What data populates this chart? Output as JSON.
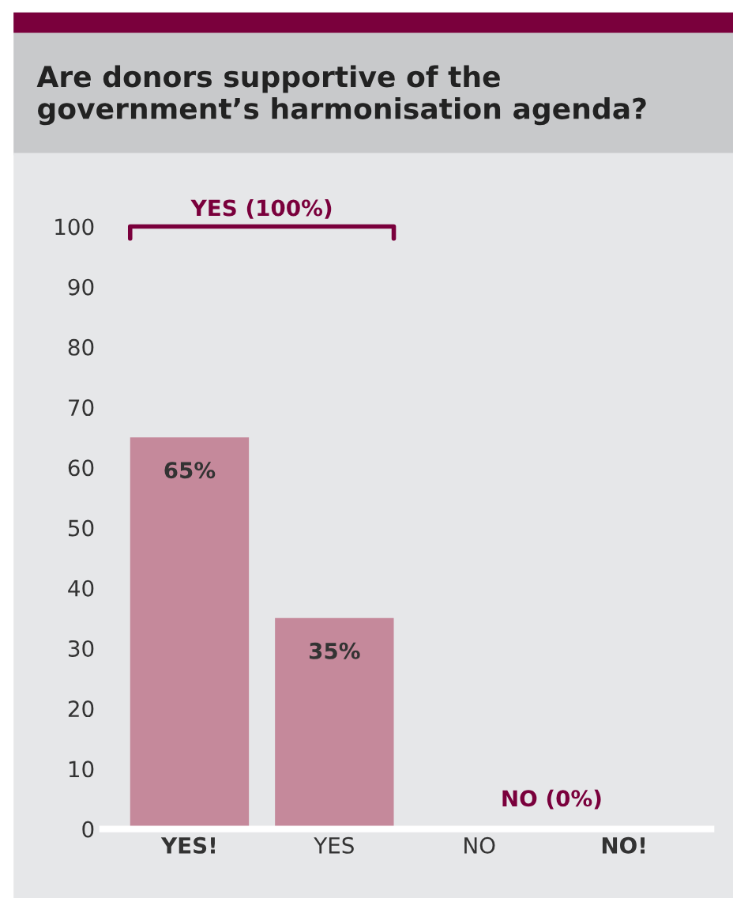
{
  "chart_data": {
    "type": "bar",
    "title": "Are donors supportive of the government’s harmonisation agenda?",
    "categories": [
      "YES!",
      "YES",
      "NO",
      "NO!"
    ],
    "values": [
      65,
      35,
      0,
      0
    ],
    "color": "#c5899b",
    "value_labels": [
      "65%",
      "35%",
      null,
      null
    ],
    "annotations": [
      "YES (100%)",
      "NO (0%)"
    ],
    "ylim": [
      0,
      100
    ],
    "yticks": [
      0,
      10,
      20,
      30,
      40,
      50,
      60,
      70,
      80,
      90,
      100
    ],
    "grid": false,
    "legend": false
  }
}
